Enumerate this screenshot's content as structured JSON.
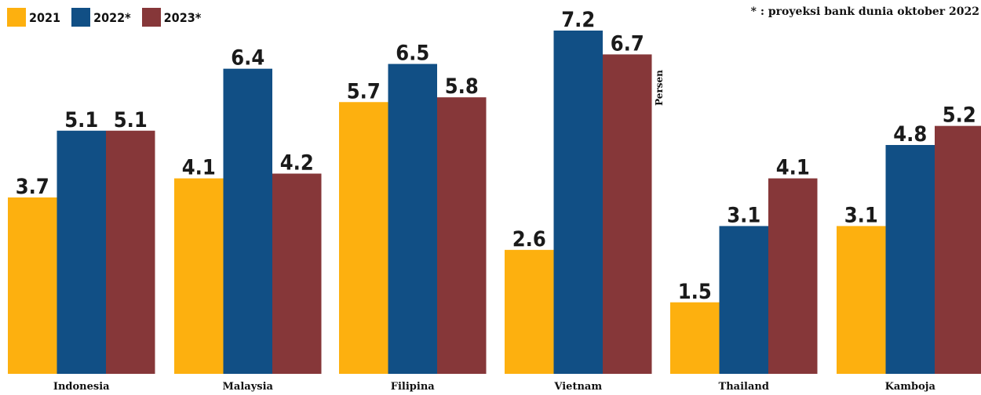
{
  "chart_data": {
    "type": "bar",
    "categories": [
      "Indonesia",
      "Malaysia",
      "Filipina",
      "Vietnam",
      "Thailand",
      "Kamboja"
    ],
    "series": [
      {
        "name": "2021",
        "color": "#FDB00F",
        "values": [
          3.7,
          4.1,
          5.7,
          2.6,
          1.5,
          3.1
        ]
      },
      {
        "name": "2022*",
        "color": "#114F85",
        "values": [
          5.1,
          6.4,
          6.5,
          7.2,
          3.1,
          4.8
        ]
      },
      {
        "name": "2023*",
        "color": "#863739",
        "values": [
          5.1,
          4.2,
          5.8,
          6.7,
          4.1,
          5.2
        ]
      }
    ],
    "ylabel": "Persen",
    "ylim": [
      0,
      7.2
    ],
    "grid": false,
    "legend_position": "top-left",
    "data_labels": true
  },
  "note": "* : proyeksi bank dunia oktober 2022"
}
